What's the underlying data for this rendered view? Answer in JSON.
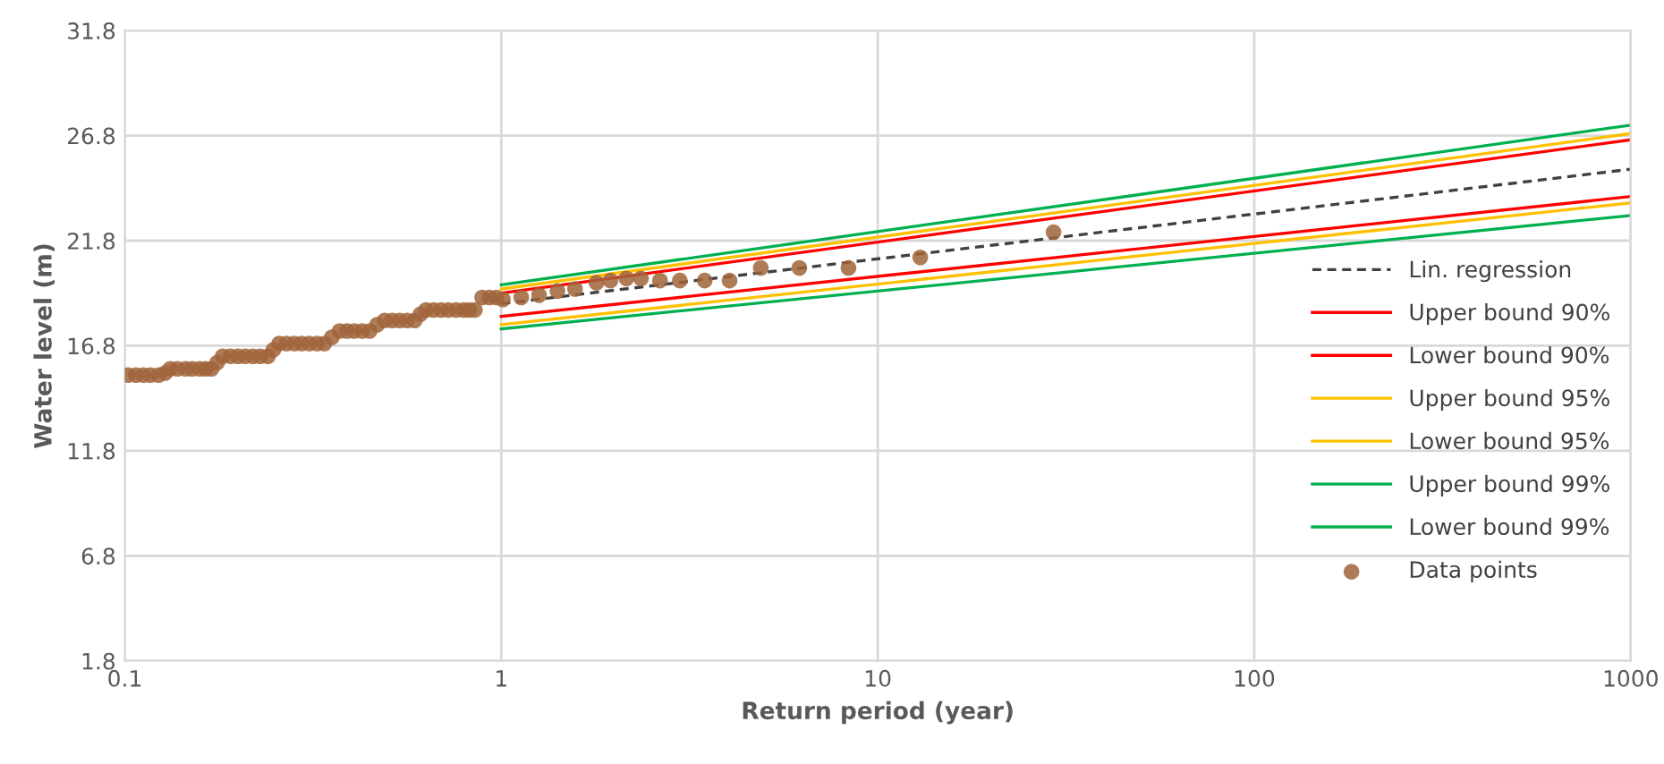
{
  "chart_data": {
    "type": "line",
    "xlabel": "Return period (year)",
    "ylabel": "Water level (m)",
    "log": "x",
    "xlim": [
      0.1,
      1000
    ],
    "ylim": [
      1.8,
      31.8
    ],
    "xticks": [
      0.1,
      1,
      10,
      100,
      1000
    ],
    "yticks": [
      1.8,
      6.8,
      11.8,
      16.8,
      21.8,
      26.8,
      31.8
    ],
    "grid": true,
    "legend": "right",
    "marker": "none",
    "line_style": "solid",
    "series": [
      {
        "name": "Lin. regression",
        "line_style": "dashed",
        "color": "#404040",
        "x": [
          1,
          1000
        ],
        "values": [
          18.8,
          25.2
        ]
      },
      {
        "name": "Upper bound 90%",
        "color": "#ff0000",
        "x": [
          1,
          1000
        ],
        "values": [
          19.3,
          26.6
        ]
      },
      {
        "name": "Lower bound 90%",
        "color": "#ff0000",
        "x": [
          1,
          1000
        ],
        "values": [
          18.2,
          23.9
        ]
      },
      {
        "name": "Upper bound 95%",
        "color": "#ffc000",
        "x": [
          1,
          1000
        ],
        "values": [
          19.5,
          26.9
        ]
      },
      {
        "name": "Lower bound 95%",
        "color": "#ffc000",
        "x": [
          1,
          1000
        ],
        "values": [
          17.8,
          23.6
        ]
      },
      {
        "name": "Upper bound 99%",
        "color": "#00b050",
        "x": [
          1,
          1000
        ],
        "values": [
          19.7,
          27.3
        ]
      },
      {
        "name": "Lower bound 99%",
        "color": "#00b050",
        "x": [
          1,
          1000
        ],
        "values": [
          17.6,
          23.0
        ]
      },
      {
        "name": "Data points",
        "type": "scatter",
        "marker": "circle",
        "color": "#a0643a",
        "x": [
          0.102,
          0.107,
          0.112,
          0.117,
          0.123,
          0.128,
          0.132,
          0.138,
          0.145,
          0.151,
          0.158,
          0.164,
          0.17,
          0.176,
          0.182,
          0.191,
          0.2,
          0.209,
          0.219,
          0.229,
          0.24,
          0.248,
          0.257,
          0.269,
          0.282,
          0.295,
          0.309,
          0.324,
          0.339,
          0.355,
          0.372,
          0.389,
          0.407,
          0.427,
          0.447,
          0.468,
          0.49,
          0.513,
          0.537,
          0.562,
          0.589,
          0.61,
          0.631,
          0.661,
          0.692,
          0.724,
          0.759,
          0.794,
          0.822,
          0.851,
          0.89,
          0.93,
          0.97,
          1.01,
          1.13,
          1.26,
          1.41,
          1.57,
          1.79,
          1.95,
          2.15,
          2.35,
          2.64,
          2.98,
          3.47,
          4.04,
          4.89,
          6.19,
          8.36,
          12.97,
          29.3
        ],
        "values": [
          15.4,
          15.4,
          15.4,
          15.4,
          15.4,
          15.5,
          15.7,
          15.7,
          15.7,
          15.7,
          15.7,
          15.7,
          15.7,
          16.0,
          16.3,
          16.3,
          16.3,
          16.3,
          16.3,
          16.3,
          16.3,
          16.6,
          16.9,
          16.9,
          16.9,
          16.9,
          16.9,
          16.9,
          16.9,
          17.2,
          17.5,
          17.5,
          17.5,
          17.5,
          17.5,
          17.8,
          18.0,
          18.0,
          18.0,
          18.0,
          18.0,
          18.3,
          18.5,
          18.5,
          18.5,
          18.5,
          18.5,
          18.5,
          18.5,
          18.5,
          19.1,
          19.1,
          19.1,
          19.0,
          19.1,
          19.2,
          19.4,
          19.5,
          19.8,
          19.9,
          20.0,
          20.0,
          19.9,
          19.9,
          19.9,
          19.9,
          20.5,
          20.5,
          20.5,
          21.0,
          22.2
        ]
      }
    ]
  }
}
